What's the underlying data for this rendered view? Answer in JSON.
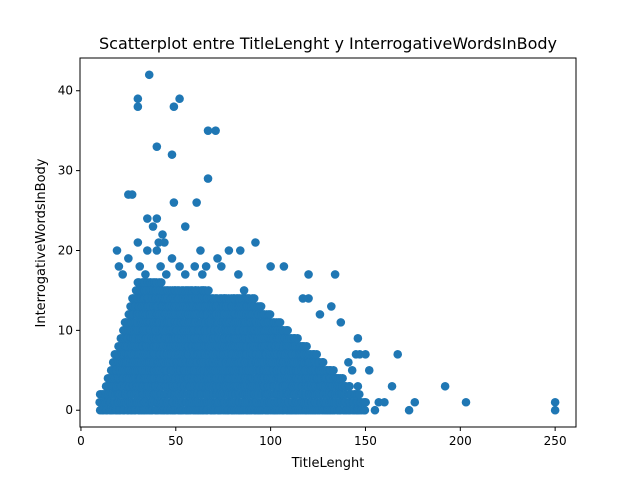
{
  "chart_data": {
    "type": "scatter",
    "title": "Scatterplot entre TitleLenght y InterrogativeWordsInBody",
    "xlabel": "TitleLenght",
    "ylabel": "InterrogativeWordsInBody",
    "xlim": [
      -0.5,
      261
    ],
    "ylim": [
      -2.1,
      44.1
    ],
    "xticks": [
      0,
      50,
      100,
      150,
      200,
      250
    ],
    "yticks": [
      0,
      10,
      20,
      30,
      40
    ],
    "grid": false,
    "marker_color": "#1f77b4",
    "points": [
      [
        36,
        42
      ],
      [
        30,
        39
      ],
      [
        52,
        39
      ],
      [
        30,
        38
      ],
      [
        49,
        38
      ],
      [
        67,
        35
      ],
      [
        71,
        35
      ],
      [
        40,
        33
      ],
      [
        48,
        32
      ],
      [
        67,
        29
      ],
      [
        25,
        27
      ],
      [
        27,
        27
      ],
      [
        49,
        26
      ],
      [
        61,
        26
      ],
      [
        35,
        24
      ],
      [
        40,
        24
      ],
      [
        38,
        23
      ],
      [
        55,
        23
      ],
      [
        41,
        21
      ],
      [
        43,
        22
      ],
      [
        44,
        21
      ],
      [
        30,
        21
      ],
      [
        92,
        21
      ],
      [
        19,
        20
      ],
      [
        35,
        20
      ],
      [
        40,
        20
      ],
      [
        63,
        20
      ],
      [
        78,
        20
      ],
      [
        84,
        20
      ],
      [
        25,
        19
      ],
      [
        48,
        19
      ],
      [
        72,
        19
      ],
      [
        20,
        18
      ],
      [
        31,
        18
      ],
      [
        42,
        18
      ],
      [
        52,
        18
      ],
      [
        60,
        18
      ],
      [
        66,
        18
      ],
      [
        74,
        18
      ],
      [
        100,
        18
      ],
      [
        107,
        18
      ],
      [
        34,
        17
      ],
      [
        45,
        17
      ],
      [
        55,
        17
      ],
      [
        64,
        17
      ],
      [
        83,
        17
      ],
      [
        120,
        17
      ],
      [
        134,
        17
      ],
      [
        22,
        17
      ],
      [
        132,
        13
      ],
      [
        137,
        11
      ],
      [
        120,
        14
      ],
      [
        117,
        14
      ],
      [
        126,
        12
      ],
      [
        146,
        9
      ],
      [
        145,
        7
      ],
      [
        147,
        7
      ],
      [
        150,
        7
      ],
      [
        141,
        6
      ],
      [
        143,
        5
      ],
      [
        152,
        5
      ],
      [
        146,
        3
      ],
      [
        164,
        3
      ],
      [
        157,
        1
      ],
      [
        160,
        1
      ],
      [
        176,
        1
      ],
      [
        192,
        3
      ],
      [
        203,
        1
      ],
      [
        167,
        7
      ],
      [
        173,
        0
      ],
      [
        155,
        0
      ],
      [
        250,
        1
      ],
      [
        250,
        0
      ]
    ],
    "dense_region": {
      "x_min": 10,
      "x_max": 150,
      "y_min": 0,
      "y_peak": 16,
      "y_peak_x": [
        30,
        85
      ]
    }
  }
}
